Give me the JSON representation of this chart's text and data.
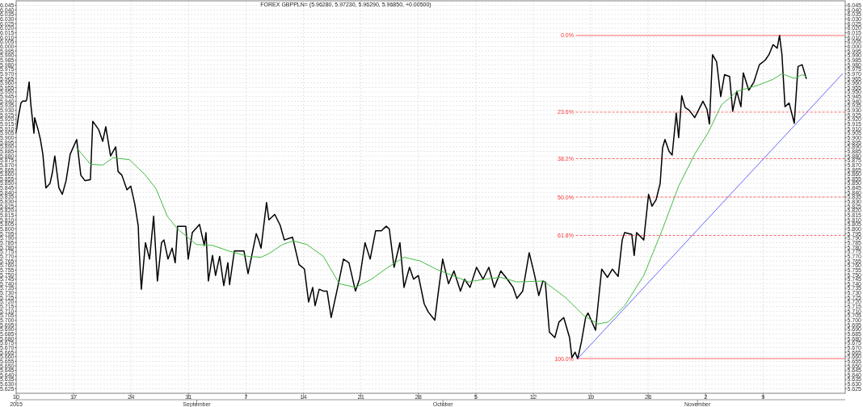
{
  "chart_data": {
    "type": "line",
    "title": "FOREX GBPPLN= (5.96280, 5.97230, 5.96290, 5.96850, +0.00500)",
    "xlim": [
      "2015-08-10",
      "2015-11-19"
    ],
    "xticks": [
      {
        "value": "2015-08-10",
        "label": "10"
      },
      {
        "value": "2015-08-17",
        "label": "17"
      },
      {
        "value": "2015-08-24",
        "label": "24"
      },
      {
        "value": "2015-08-31",
        "label": "31"
      },
      {
        "value": "2015-09-07",
        "label": "7"
      },
      {
        "value": "2015-09-14",
        "label": "14"
      },
      {
        "value": "2015-09-21",
        "label": "21"
      },
      {
        "value": "2015-09-28",
        "label": "28"
      },
      {
        "value": "2015-10-05",
        "label": "5"
      },
      {
        "value": "2015-10-12",
        "label": "12"
      },
      {
        "value": "2015-10-19",
        "label": "19"
      },
      {
        "value": "2015-10-26",
        "label": "26"
      },
      {
        "value": "2015-11-02",
        "label": "2"
      },
      {
        "value": "2015-11-09",
        "label": "9"
      }
    ],
    "x2lim": [
      "2015-08-10",
      "2015-11-19"
    ],
    "x2ticks": [
      {
        "value": "2015-08-10",
        "label": "2015"
      },
      {
        "value": "2015-09-01",
        "label": "September"
      },
      {
        "value": "2015-10-01",
        "label": "October"
      },
      {
        "value": "2015-11-01",
        "label": "November"
      }
    ],
    "ylim": [
      5.62,
      6.05
    ],
    "yticks": [
      6.045,
      {
        "value": 6.04,
        "label": "6.040"
      },
      6.035,
      {
        "value": 6.03,
        "label": "6.030"
      },
      6.025,
      {
        "value": 6.02,
        "label": "6.020"
      },
      6.015,
      {
        "value": 6.01,
        "label": "6.010"
      },
      6.005,
      {
        "value": 6,
        "label": "6.000"
      },
      5.995,
      {
        "value": 5.99,
        "label": "5.990"
      },
      5.985,
      {
        "value": 5.98,
        "label": "5.980"
      },
      5.975,
      {
        "value": 5.97,
        "label": "5.970"
      },
      5.965,
      {
        "value": 5.96,
        "label": "5.960"
      },
      5.955,
      {
        "value": 5.95,
        "label": "5.950"
      },
      5.945,
      {
        "value": 5.94,
        "label": "5.940"
      },
      5.935,
      {
        "value": 5.93,
        "label": "5.930"
      },
      5.925,
      {
        "value": 5.92,
        "label": "5.920"
      },
      5.915,
      {
        "value": 5.91,
        "label": "5.910"
      },
      5.905,
      {
        "value": 5.9,
        "label": "5.900"
      },
      5.895,
      {
        "value": 5.89,
        "label": "5.890"
      },
      5.885,
      {
        "value": 5.88,
        "label": "5.880"
      },
      5.875,
      {
        "value": 5.87,
        "label": "5.870"
      },
      5.865,
      {
        "value": 5.86,
        "label": "5.860"
      },
      5.855,
      {
        "value": 5.85,
        "label": "5.850"
      },
      5.845,
      {
        "value": 5.84,
        "label": "5.840"
      },
      5.835,
      {
        "value": 5.83,
        "label": "5.830"
      },
      5.825,
      {
        "value": 5.82,
        "label": "5.820"
      },
      5.815,
      {
        "value": 5.81,
        "label": "5.810"
      },
      5.805,
      {
        "value": 5.8,
        "label": "5.800"
      },
      5.795,
      {
        "value": 5.79,
        "label": "5.790"
      },
      5.785,
      {
        "value": 5.78,
        "label": "5.780"
      },
      5.775,
      {
        "value": 5.77,
        "label": "5.770"
      },
      5.765,
      {
        "value": 5.76,
        "label": "5.760"
      },
      5.755,
      {
        "value": 5.75,
        "label": "5.750"
      },
      5.745,
      {
        "value": 5.74,
        "label": "5.740"
      },
      5.735,
      {
        "value": 5.73,
        "label": "5.730"
      },
      5.725,
      {
        "value": 5.72,
        "label": "5.720"
      },
      5.715,
      {
        "value": 5.71,
        "label": "5.710"
      },
      5.705,
      {
        "value": 5.7,
        "label": "5.700"
      },
      5.695,
      {
        "value": 5.69,
        "label": "5.690"
      },
      5.685,
      {
        "value": 5.68,
        "label": "5.680"
      },
      5.675,
      {
        "value": 5.67,
        "label": "5.670"
      },
      5.665,
      {
        "value": 5.66,
        "label": "5.660"
      },
      5.655,
      {
        "value": 5.65,
        "label": "5.650"
      },
      5.645,
      {
        "value": 5.64,
        "label": "5.640"
      },
      5.635,
      {
        "value": 5.63,
        "label": "5.630"
      },
      5.625
    ],
    "y2lim": [
      5.62,
      6.05
    ],
    "y2ticks": [
      6.045,
      {
        "value": 6.04,
        "label": "6.040"
      },
      6.035,
      {
        "value": 6.03,
        "label": "6.030"
      },
      6.025,
      {
        "value": 6.02,
        "label": "6.020"
      },
      6.015,
      {
        "value": 6.01,
        "label": "6.010"
      },
      6.005,
      {
        "value": 6,
        "label": "6.000"
      },
      5.995,
      {
        "value": 5.99,
        "label": "5.990"
      },
      5.985,
      {
        "value": 5.98,
        "label": "5.980"
      },
      5.975,
      {
        "value": 5.97,
        "label": "5.970"
      },
      5.965,
      {
        "value": 5.96,
        "label": "5.960"
      },
      5.955,
      {
        "value": 5.95,
        "label": "5.950"
      },
      5.945,
      {
        "value": 5.94,
        "label": "5.940"
      },
      5.935,
      {
        "value": 5.93,
        "label": "5.930"
      },
      5.925,
      {
        "value": 5.92,
        "label": "5.920"
      },
      5.915,
      {
        "value": 5.91,
        "label": "5.910"
      },
      5.905,
      {
        "value": 5.9,
        "label": "5.900"
      },
      5.895,
      {
        "value": 5.89,
        "label": "5.890"
      },
      5.885,
      {
        "value": 5.88,
        "label": "5.880"
      },
      5.875,
      {
        "value": 5.87,
        "label": "5.870"
      },
      5.865,
      {
        "value": 5.86,
        "label": "5.860"
      },
      5.855,
      {
        "value": 5.85,
        "label": "5.850"
      },
      5.845,
      {
        "value": 5.84,
        "label": "5.840"
      },
      5.835,
      {
        "value": 5.83,
        "label": "5.830"
      },
      5.825,
      {
        "value": 5.82,
        "label": "5.820"
      },
      5.815,
      {
        "value": 5.81,
        "label": "5.810"
      },
      5.805,
      {
        "value": 5.8,
        "label": "5.800"
      },
      5.795,
      {
        "value": 5.79,
        "label": "5.790"
      },
      5.785,
      {
        "value": 5.78,
        "label": "5.780"
      },
      5.775,
      {
        "value": 5.77,
        "label": "5.770"
      },
      5.765,
      {
        "value": 5.76,
        "label": "5.760"
      },
      5.755,
      {
        "value": 5.75,
        "label": "5.750"
      },
      5.745,
      {
        "value": 5.74,
        "label": "5.740"
      },
      5.735,
      {
        "value": 5.73,
        "label": "5.730"
      },
      5.725,
      {
        "value": 5.72,
        "label": "5.720"
      },
      5.715,
      {
        "value": 5.71,
        "label": "5.710"
      },
      5.705,
      {
        "value": 5.7,
        "label": "5.700"
      },
      5.695,
      {
        "value": 5.69,
        "label": "5.690"
      },
      5.685,
      {
        "value": 5.68,
        "label": "5.680"
      },
      5.675,
      {
        "value": 5.67,
        "label": "5.670"
      },
      5.665,
      {
        "value": 5.66,
        "label": "5.660"
      },
      5.655,
      {
        "value": 5.65,
        "label": "5.650"
      },
      5.645,
      {
        "value": 5.64,
        "label": "5.640"
      },
      5.635,
      {
        "value": 5.63,
        "label": "5.630"
      },
      5.625
    ],
    "grid": true,
    "marker": "none",
    "line_style": "solid",
    "series": [
      {
        "color": "#000000",
        "x": [
          "2015-08-10T00:00",
          "2015-08-10T07:00",
          "2015-08-10T14:00",
          "2015-08-10T19:00",
          "2015-08-11T04:00",
          "2015-08-11T07:00",
          "2015-08-11T14:00",
          "2015-08-11T19:00",
          "2015-08-12T04:00",
          "2015-08-12T06:00",
          "2015-08-12T16:00",
          "2015-08-12T23:00",
          "2015-08-13T06:00",
          "2015-08-13T15:00",
          "2015-08-14T03:00",
          "2015-08-14T10:00",
          "2015-08-14T17:00",
          "2015-08-15T05:00",
          "2015-08-15T15:00",
          "2015-08-16T02:00",
          "2015-08-16T14:00",
          "2015-08-17T09:00",
          "2015-08-17T21:00",
          "2015-08-18T09:00",
          "2015-08-19T01:00",
          "2015-08-19T08:00",
          "2015-08-20T01:00",
          "2015-08-20T13:00",
          "2015-08-20T22:00",
          "2015-08-21T12:00",
          "2015-08-22T03:00",
          "2015-08-22T10:00",
          "2015-08-22T21:00",
          "2015-08-23T12:00",
          "2015-08-23T23:00",
          "2015-08-24T11:00",
          "2015-08-24T21:00",
          "2015-08-24T23:00",
          "2015-08-25T06:00",
          "2015-08-25T18:00",
          "2015-08-26T06:00",
          "2015-08-26T18:00",
          "2015-08-27T05:00",
          "2015-08-27T17:00",
          "2015-08-28T00:00",
          "2015-08-28T12:00",
          "2015-08-29T00:00",
          "2015-08-29T09:00",
          "2015-08-29T16:00",
          "2015-08-30T16:00",
          "2015-08-30T23:00",
          "2015-08-31T11:00",
          "2015-09-01T08:00",
          "2015-09-01T22:00",
          "2015-09-02T03:00",
          "2015-09-02T10:00",
          "2015-09-02T22:00",
          "2015-09-03T07:00",
          "2015-09-03T19:00",
          "2015-09-04T07:00",
          "2015-09-04T19:00",
          "2015-09-05T00:00",
          "2015-09-05T14:00",
          "2015-09-06T02:00",
          "2015-09-06T18:00",
          "2015-09-07T06:00",
          "2015-09-07T18:00",
          "2015-09-08T06:00",
          "2015-09-08T13:00",
          "2015-09-08T20:00",
          "2015-09-09T12:00",
          "2015-09-09T19:00",
          "2015-09-10T12:00",
          "2015-09-11T04:00",
          "2015-09-11T16:00",
          "2015-09-12T16:00",
          "2015-09-13T11:00",
          "2015-09-14T03:00",
          "2015-09-14T15:00",
          "2015-09-15T03:00",
          "2015-09-15T10:00",
          "2015-09-15T22:00",
          "2015-09-16T10:00",
          "2015-09-16T21:00",
          "2015-09-17T09:00",
          "2015-09-18T04:00",
          "2015-09-18T21:00",
          "2015-09-19T13:00",
          "2015-09-20T08:00",
          "2015-09-20T20:00",
          "2015-09-21T12:00",
          "2015-09-22T03:00",
          "2015-09-22T19:00",
          "2015-09-23T12:00",
          "2015-09-24T02:00",
          "2015-09-24T11:00",
          "2015-09-25T01:00",
          "2015-09-25T18:00",
          "2015-09-26T06:00",
          "2015-09-26T22:00",
          "2015-09-27T10:00",
          "2015-09-28T00:00",
          "2015-09-28T17:00",
          "2015-09-29T05:00",
          "2015-09-30T00:00",
          "2015-09-30T09:00",
          "2015-09-30T23:00",
          "2015-10-01T16:00",
          "2015-10-02T08:00",
          "2015-10-03T03:00",
          "2015-10-03T15:00",
          "2015-10-04T07:00",
          "2015-10-05T02:00",
          "2015-10-05T21:00",
          "2015-10-06T14:00",
          "2015-10-07T06:00",
          "2015-10-08T01:00",
          "2015-10-08T20:00",
          "2015-10-09T13:00",
          "2015-10-10T00:00",
          "2015-10-10T17:00",
          "2015-10-11T12:00",
          "2015-10-12T04:00",
          "2015-10-12T16:00",
          "2015-10-13T04:00",
          "2015-10-13T11:00",
          "2015-10-13T23:00",
          "2015-10-14T15:00",
          "2015-10-15T03:00",
          "2015-10-15T17:00",
          "2015-10-16T10:00",
          "2015-10-16T17:00",
          "2015-10-17T02:00",
          "2015-10-17T10:00",
          "2015-10-17T21:00",
          "2015-10-18T09:00",
          "2015-10-18T16:00",
          "2015-10-19T14:00",
          "2015-10-19T21:00",
          "2015-10-20T08:00",
          "2015-10-21T01:00",
          "2015-10-21T15:00",
          "2015-10-22T08:00",
          "2015-10-22T20:00",
          "2015-10-23T03:00",
          "2015-10-24T00:00",
          "2015-10-24T07:00",
          "2015-10-24T14:00",
          "2015-10-25T11:00",
          "2015-10-26T01:00",
          "2015-10-26T11:00",
          "2015-10-26T23:00",
          "2015-10-27T11:00",
          "2015-10-27T18:00",
          "2015-10-28T01:00",
          "2015-10-28T13:00",
          "2015-10-28T22:00",
          "2015-10-29T10:00",
          "2015-10-29T17:00",
          "2015-10-30T02:00",
          "2015-10-30T12:00",
          "2015-10-31T00:00",
          "2015-10-31T16:00",
          "2015-11-01T16:00",
          "2015-11-02T04:00",
          "2015-11-02T11:00",
          "2015-11-02T20:00",
          "2015-11-03T08:00",
          "2015-11-03T20:00",
          "2015-11-04T07:00",
          "2015-11-04T22:00",
          "2015-11-05T07:00",
          "2015-11-05T19:00",
          "2015-11-06T07:00",
          "2015-11-06T14:00",
          "2015-11-07T06:00",
          "2015-11-07T21:00",
          "2015-11-08T13:00",
          "2015-11-09T06:00",
          "2015-11-09T17:00",
          "2015-11-10T05:00",
          "2015-11-10T17:00",
          "2015-11-11T00:00",
          "2015-11-11T07:00",
          "2015-11-11T16:00",
          "2015-11-12T04:00",
          "2015-11-12T19:00",
          "2015-11-13T06:00",
          "2015-11-13T18:00",
          "2015-11-14T06:00"
        ],
        "values": [
          5.906,
          5.924,
          5.938,
          5.94,
          5.94,
          5.942,
          5.961,
          5.936,
          5.905,
          5.922,
          5.909,
          5.898,
          5.882,
          5.845,
          5.85,
          5.862,
          5.88,
          5.845,
          5.838,
          5.853,
          5.882,
          5.898,
          5.859,
          5.853,
          5.854,
          5.918,
          5.909,
          5.896,
          5.912,
          5.88,
          5.89,
          5.863,
          5.859,
          5.843,
          5.847,
          5.827,
          5.803,
          5.782,
          5.734,
          5.785,
          5.767,
          5.814,
          5.743,
          5.785,
          5.788,
          5.767,
          5.779,
          5.763,
          5.803,
          5.803,
          5.767,
          5.796,
          5.805,
          5.782,
          5.796,
          5.743,
          5.771,
          5.749,
          5.77,
          5.738,
          5.763,
          5.739,
          5.776,
          5.776,
          5.776,
          5.751,
          5.773,
          5.795,
          5.788,
          5.779,
          5.829,
          5.81,
          5.816,
          5.804,
          5.788,
          5.791,
          5.761,
          5.756,
          5.72,
          5.736,
          5.716,
          5.734,
          5.732,
          5.732,
          5.703,
          5.736,
          5.767,
          5.763,
          5.732,
          5.745,
          5.785,
          5.767,
          5.798,
          5.798,
          5.803,
          5.8,
          5.758,
          5.785,
          5.736,
          5.758,
          5.745,
          5.749,
          5.718,
          5.709,
          5.7,
          5.727,
          5.767,
          5.74,
          5.754,
          5.732,
          5.745,
          5.736,
          5.758,
          5.745,
          5.758,
          5.736,
          5.754,
          5.745,
          5.736,
          5.724,
          5.732,
          5.774,
          5.749,
          5.727,
          5.743,
          5.742,
          5.687,
          5.681,
          5.698,
          5.703,
          5.681,
          5.659,
          5.665,
          5.658,
          5.677,
          5.703,
          5.708,
          5.689,
          5.716,
          5.756,
          5.747,
          5.756,
          5.748,
          5.788,
          5.796,
          5.794,
          5.771,
          5.796,
          5.788,
          5.838,
          5.825,
          5.832,
          5.85,
          5.889,
          5.898,
          5.885,
          5.881,
          5.927,
          5.9,
          5.946,
          5.933,
          5.93,
          5.922,
          5.94,
          5.931,
          5.915,
          5.991,
          5.983,
          5.945,
          5.969,
          5.967,
          5.929,
          5.951,
          5.934,
          5.971,
          5.952,
          5.961,
          5.98,
          5.985,
          5.991,
          6.002,
          5.998,
          6.012,
          5.991,
          5.934,
          5.938,
          5.916,
          5.978,
          5.98,
          5.965
        ]
      },
      {
        "color": "#44bb44",
        "x": [
          "2015-08-17T09:00",
          "2015-08-19T01:00",
          "2015-08-20T13:00",
          "2015-08-21T19:00",
          "2015-08-23T19:00",
          "2015-08-25T18:00",
          "2015-08-27T01:00",
          "2015-08-28T10:00",
          "2015-08-29T16:00",
          "2015-08-31T23:00",
          "2015-09-02T22:00",
          "2015-09-04T21:00",
          "2015-09-07T06:00",
          "2015-09-08T20:00",
          "2015-09-09T19:00",
          "2015-09-11T11:00",
          "2015-09-12T18:00",
          "2015-09-14T10:00",
          "2015-09-16T10:00",
          "2015-09-18T09:00",
          "2015-09-20T08:00",
          "2015-09-22T07:00",
          "2015-09-24T07:00",
          "2015-09-26T06:00",
          "2015-09-28T05:00",
          "2015-09-30T04:00",
          "2015-10-02T04:00",
          "2015-10-04T03:00",
          "2015-10-06T02:00",
          "2015-10-08T01:00",
          "2015-10-10T00:00",
          "2015-10-13T06:00",
          "2015-10-15T22:00",
          "2015-10-18T04:00",
          "2015-10-19T21:00",
          "2015-10-21T03:00",
          "2015-10-23T03:00",
          "2015-10-25T11:00",
          "2015-10-27T18:00",
          "2015-10-29T17:00",
          "2015-10-31T16:00",
          "2015-11-02T08:00",
          "2015-11-03T22:00",
          "2015-11-05T21:00",
          "2015-11-08T13:00",
          "2015-11-10T05:00",
          "2015-11-11T07:00",
          "2015-11-12T19:00",
          "2015-11-13T18:00",
          "2015-11-14T06:00"
        ],
        "values": [
          5.889,
          5.871,
          5.87,
          5.878,
          5.876,
          5.859,
          5.844,
          5.814,
          5.8,
          5.783,
          5.782,
          5.776,
          5.77,
          5.769,
          5.773,
          5.783,
          5.787,
          5.783,
          5.77,
          5.74,
          5.736,
          5.745,
          5.758,
          5.769,
          5.765,
          5.756,
          5.749,
          5.742,
          5.745,
          5.747,
          5.742,
          5.743,
          5.725,
          5.705,
          5.696,
          5.698,
          5.716,
          5.749,
          5.8,
          5.847,
          5.882,
          5.906,
          5.936,
          5.951,
          5.958,
          5.964,
          5.97,
          5.965,
          5.969,
          5.967
        ]
      },
      {
        "color": "#6666ff",
        "x": [
          "2015-10-17T10:00",
          "2015-11-18T16:00"
        ],
        "values": [
          5.658,
          5.97
        ]
      }
    ],
    "ref_lines": [
      {
        "axis": "y",
        "value": 6.012,
        "color": "#ff6666",
        "line_style": "solid"
      },
      {
        "axis": "y",
        "value": 5.928,
        "color": "#ff6666",
        "line_style": "dashed"
      },
      {
        "axis": "y",
        "value": 5.877,
        "color": "#ff6666",
        "line_style": "dashed"
      },
      {
        "axis": "y",
        "value": 5.835,
        "color": "#ff6666",
        "line_style": "dashed"
      },
      {
        "axis": "y",
        "value": 5.793,
        "color": "#ff6666",
        "line_style": "dashed"
      },
      {
        "axis": "y",
        "value": 5.658,
        "color": "#ff6666",
        "line_style": "solid"
      }
    ],
    "annotations": [
      {
        "text": "0.0%",
        "x": "2015-10-16T22:00",
        "y": 6.012
      },
      {
        "text": "23.6%",
        "x": "2015-10-16T22:00",
        "y": 5.928
      },
      {
        "text": "38.2%",
        "x": "2015-10-16T22:00",
        "y": 5.877
      },
      {
        "text": "50.0%",
        "x": "2015-10-16T22:00",
        "y": 5.835
      },
      {
        "text": "61.8%",
        "x": "2015-10-16T22:00",
        "y": 5.793
      },
      {
        "text": "100.0%",
        "x": "2015-10-16T22:00",
        "y": 5.658
      }
    ]
  }
}
